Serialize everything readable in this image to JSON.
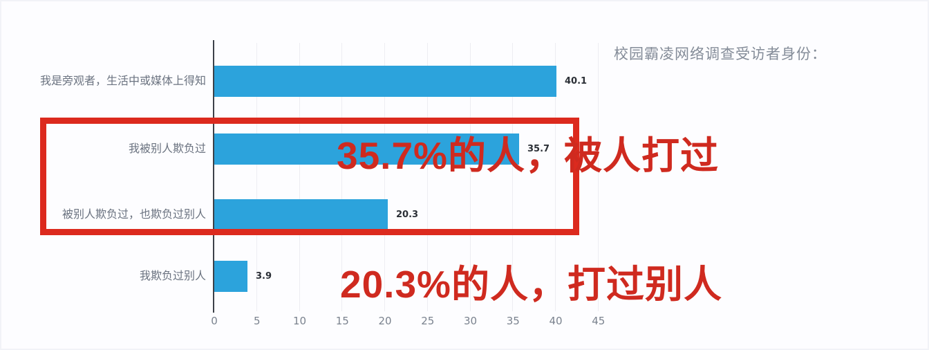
{
  "header": {
    "title": "校园霸凌网络调查受访者身份："
  },
  "chart_data": {
    "type": "bar",
    "orientation": "horizontal",
    "title": "校园霸凌网络调查受访者身份：",
    "categories": [
      "我是旁观者，生活中或媒体上得知",
      "我被别人欺负过",
      "被别人欺负过，也欺负过别人",
      "我欺负过别人"
    ],
    "values": [
      40.1,
      35.7,
      20.3,
      3.9
    ],
    "value_labels": [
      "40.1",
      "35.7",
      "20.3",
      "3.9"
    ],
    "xticks": [
      "0",
      "5",
      "10",
      "15",
      "20",
      "25",
      "30",
      "35",
      "40",
      "45"
    ],
    "xlim": [
      0,
      45
    ],
    "grid": true,
    "legend": false,
    "bar_color": "#2ca3dc"
  },
  "annotations": {
    "highlight_box_color": "#dc2a1e",
    "text_color": "#cf2a1f",
    "notes": [
      {
        "text": "35.7%的人，被人打过"
      },
      {
        "text": "20.3%的人，打过别人"
      }
    ]
  }
}
